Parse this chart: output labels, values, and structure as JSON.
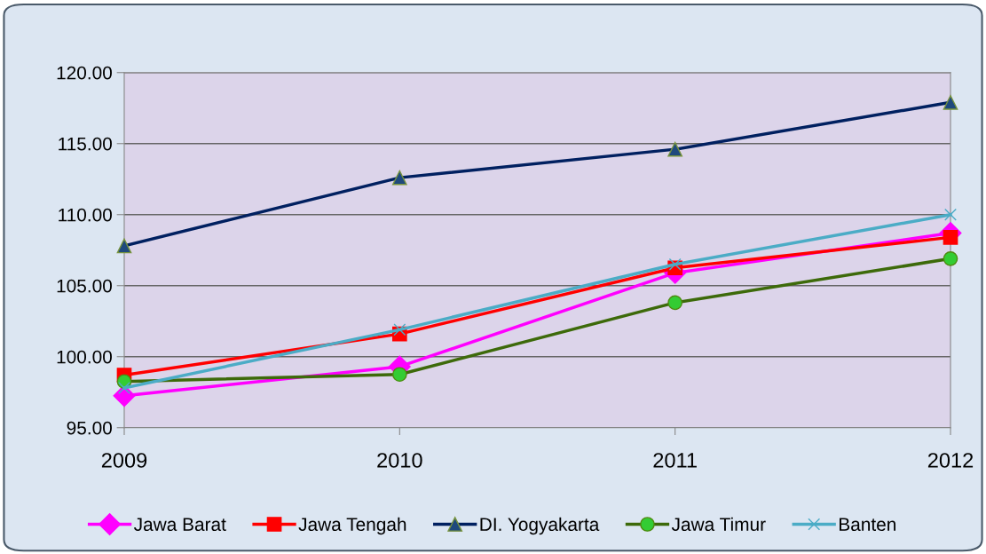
{
  "chart_data": {
    "type": "line",
    "x": [
      2009,
      2010,
      2011,
      2012
    ],
    "xlim": [
      2009,
      2012
    ],
    "xticks": [
      2009,
      2010,
      2011,
      2012
    ],
    "ylim": [
      95,
      120
    ],
    "yticks": [
      {
        "value": 95,
        "label": "95.00"
      },
      {
        "value": 100,
        "label": "100.00"
      },
      {
        "value": 105,
        "label": "105.00"
      },
      {
        "value": 110,
        "label": "110.00"
      },
      {
        "value": 115,
        "label": "115.00"
      },
      {
        "value": 120,
        "label": "120.00"
      }
    ],
    "grid": "y",
    "legend": "bottom",
    "series": [
      {
        "name": "Jawa Barat",
        "color": "#ff00ff",
        "marker": "diamond",
        "values": [
          97.25,
          99.3,
          105.9,
          108.7
        ]
      },
      {
        "name": "Jawa Tengah",
        "color": "#ff0000",
        "marker": "square",
        "values": [
          98.7,
          101.6,
          106.25,
          108.4
        ]
      },
      {
        "name": "DI. Yogyakarta",
        "color": "#002060",
        "marker": "triangle",
        "values": [
          107.8,
          112.6,
          114.6,
          117.9
        ]
      },
      {
        "name": "Jawa Timur",
        "color": "#3d6a0a",
        "marker": "circle",
        "values": [
          98.25,
          98.75,
          103.8,
          106.9
        ]
      },
      {
        "name": "Banten",
        "color": "#4bacc6",
        "marker": "cross",
        "values": [
          97.8,
          101.9,
          106.5,
          110.0
        ]
      }
    ]
  }
}
